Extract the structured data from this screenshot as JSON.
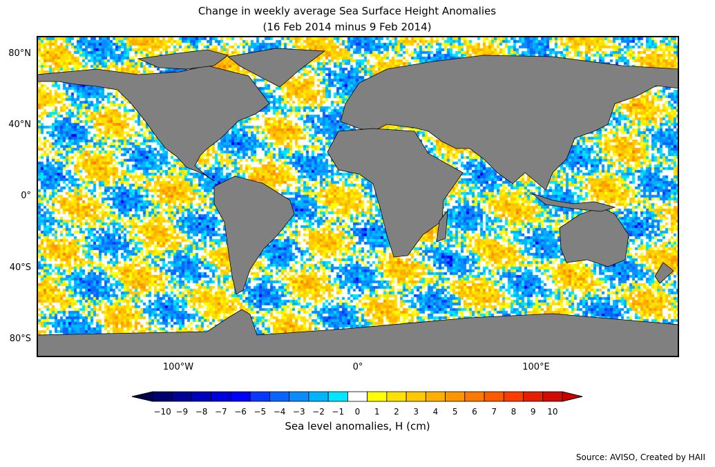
{
  "title_line1": "Change in weekly average Sea Surface Height Anomalies",
  "title_line2": "(16 Feb 2014 minus 9 Feb 2014)",
  "lat_labels": [
    "80°N",
    "40°N",
    "0°",
    "40°S",
    "80°S"
  ],
  "lon_labels": [
    "100°W",
    "0°",
    "100°E"
  ],
  "colorbar": {
    "ticks": [
      "−10",
      "−9",
      "−8",
      "−7",
      "−6",
      "−5",
      "−4",
      "−3",
      "−2",
      "−1",
      "0",
      "1",
      "2",
      "3",
      "4",
      "5",
      "6",
      "7",
      "8",
      "9",
      "10"
    ],
    "colors": [
      "#00006e",
      "#000096",
      "#0000be",
      "#0000dc",
      "#0000ff",
      "#0a37ff",
      "#0a64ff",
      "#0a8cff",
      "#00b4ff",
      "#00e6ff",
      "#ffffff",
      "#ffff00",
      "#ffe100",
      "#ffc800",
      "#ffaf00",
      "#ff9600",
      "#ff7800",
      "#ff5a00",
      "#ff3c00",
      "#e61e00",
      "#d20a00"
    ],
    "under_color": "#000050",
    "over_color": "#c80000",
    "label": "Sea level anomalies, H (cm)"
  },
  "land_color": "#808080",
  "source": "Source: AVISO, Created by HAII"
}
